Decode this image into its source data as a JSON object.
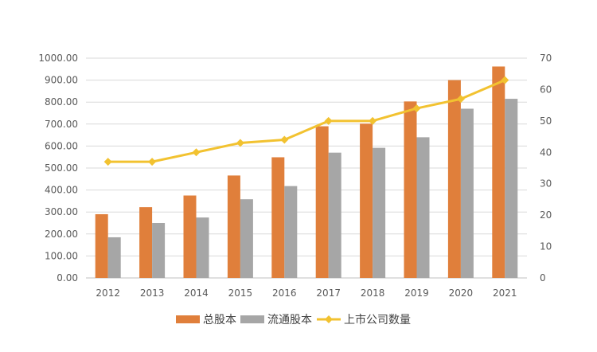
{
  "chart_data": {
    "type": "bar",
    "categories": [
      "2012",
      "2013",
      "2014",
      "2015",
      "2016",
      "2017",
      "2018",
      "2019",
      "2020",
      "2021"
    ],
    "series": [
      {
        "name": "总股本",
        "type": "bar",
        "axis": "left",
        "color": "#E07F3B",
        "values": [
          290,
          322,
          375,
          466,
          549,
          690,
          702,
          803,
          900,
          962
        ]
      },
      {
        "name": "流通股本",
        "type": "bar",
        "axis": "left",
        "color": "#A6A6A6",
        "values": [
          185,
          250,
          275,
          358,
          418,
          570,
          592,
          640,
          770,
          815
        ]
      },
      {
        "name": "上市公司数量",
        "type": "line",
        "axis": "right",
        "color": "#F2C230",
        "marker": "diamond",
        "values": [
          37,
          37,
          40,
          43,
          44,
          50,
          50,
          54,
          57,
          63
        ]
      }
    ],
    "y_left": {
      "ylim": [
        0,
        1000
      ],
      "ticks": [
        "0.00",
        "100.00",
        "200.00",
        "300.00",
        "400.00",
        "500.00",
        "600.00",
        "700.00",
        "800.00",
        "900.00",
        "1000.00"
      ]
    },
    "y_right": {
      "ylim": [
        0,
        70
      ],
      "ticks": [
        "0",
        "10",
        "20",
        "30",
        "40",
        "50",
        "60",
        "70"
      ]
    },
    "grid": true,
    "legend": {
      "position": "bottom"
    }
  }
}
